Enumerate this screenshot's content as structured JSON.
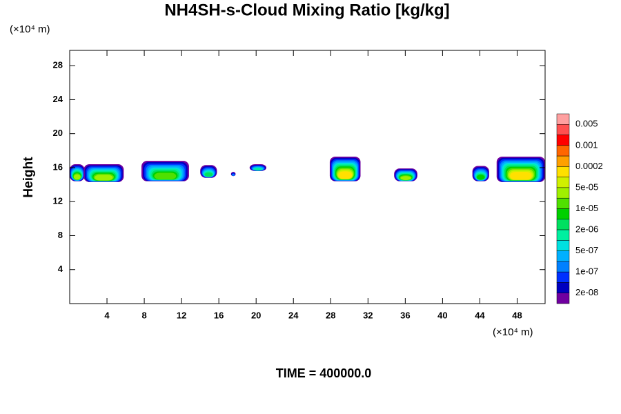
{
  "chart_data": {
    "type": "contour",
    "title": "NH4SH-s-Cloud Mixing Ratio [kg/kg]",
    "y_label": "Height",
    "y_unit": "(×10⁴ m)",
    "x_unit": "(×10⁴ m)",
    "footer": "TIME = 400000.0",
    "xlim": [
      0,
      51
    ],
    "ylim": [
      0,
      29.8
    ],
    "xticks": [
      4,
      8,
      12,
      16,
      20,
      24,
      28,
      32,
      36,
      40,
      44,
      48
    ],
    "yticks": [
      4,
      8,
      12,
      16,
      20,
      24,
      28
    ],
    "colorbar": {
      "colors": [
        "#ffa0a0",
        "#ff5050",
        "#ff0000",
        "#ff6600",
        "#ffa000",
        "#ffe000",
        "#d0f000",
        "#a0f000",
        "#50e000",
        "#00d000",
        "#00e060",
        "#00f0a0",
        "#00e0e0",
        "#00b0ff",
        "#0080ff",
        "#0030ff",
        "#0000c0",
        "#7000a0"
      ],
      "levels": [
        0.005,
        0.001,
        0.0002,
        {
          "value": 5e-05,
          "label": "5e-05"
        },
        {
          "value": 1e-05,
          "label": "1e-05"
        },
        {
          "value": 2e-06,
          "label": "2e-06"
        },
        {
          "value": 5e-07,
          "label": "5e-07"
        },
        {
          "value": 1e-07,
          "label": "1e-07"
        },
        {
          "value": 2e-08,
          "label": "2e-08"
        }
      ]
    },
    "clouds": [
      {
        "xlim": [
          0,
          1.6
        ],
        "ylim": [
          14.4,
          16.4
        ],
        "peak": 5e-05
      },
      {
        "xlim": [
          1.5,
          5.8
        ],
        "ylim": [
          14.3,
          16.4
        ],
        "peak": 3e-05
      },
      {
        "xlim": [
          7.7,
          12.8
        ],
        "ylim": [
          14.4,
          16.8
        ],
        "peak": 2e-05
      },
      {
        "xlim": [
          14.0,
          15.8
        ],
        "ylim": [
          14.8,
          16.3
        ],
        "peak": 2e-06
      },
      {
        "xlim": [
          17.3,
          17.8
        ],
        "ylim": [
          15.0,
          15.5
        ],
        "peak": 2e-07
      },
      {
        "xlim": [
          19.3,
          21.1
        ],
        "ylim": [
          15.6,
          16.4
        ],
        "peak": 1e-06
      },
      {
        "xlim": [
          27.9,
          31.2
        ],
        "ylim": [
          14.4,
          17.3
        ],
        "peak": 0.0002
      },
      {
        "xlim": [
          34.8,
          37.3
        ],
        "ylim": [
          14.4,
          15.9
        ],
        "peak": 5e-05
      },
      {
        "xlim": [
          43.2,
          45.0
        ],
        "ylim": [
          14.4,
          16.2
        ],
        "peak": 5e-06
      },
      {
        "xlim": [
          45.8,
          51
        ],
        "ylim": [
          14.3,
          17.3
        ],
        "peak": 0.0002
      }
    ]
  }
}
